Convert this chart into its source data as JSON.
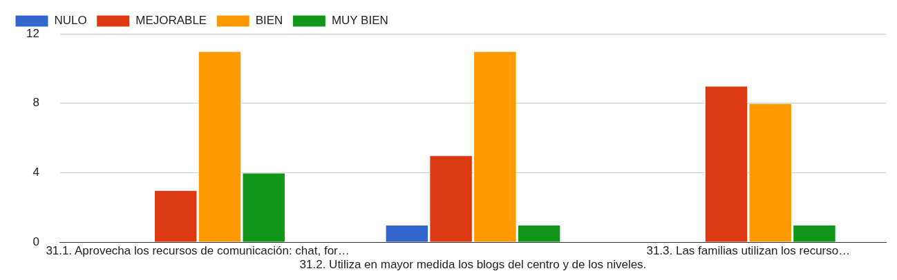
{
  "chart_data": {
    "type": "bar",
    "categories": [
      "31.1. Aprovecha los recursos de comunicación: chat, for…",
      "31.2. Utiliza en mayor medida los blogs del centro y de los niveles.",
      "31.3. Las familias utilizan los recurso…"
    ],
    "series": [
      {
        "name": "NULO",
        "color": "#3366cc",
        "values": [
          0,
          1,
          0
        ]
      },
      {
        "name": "MEJORABLE",
        "color": "#dc3912",
        "values": [
          3,
          5,
          9
        ]
      },
      {
        "name": "BIEN",
        "color": "#ff9900",
        "values": [
          11,
          11,
          8
        ]
      },
      {
        "name": "MUY BIEN",
        "color": "#109618",
        "values": [
          4,
          1,
          1
        ]
      }
    ],
    "ylim": [
      0,
      12
    ],
    "yticks": [
      0,
      4,
      8,
      12
    ],
    "grid": "y",
    "legend": "top left"
  }
}
